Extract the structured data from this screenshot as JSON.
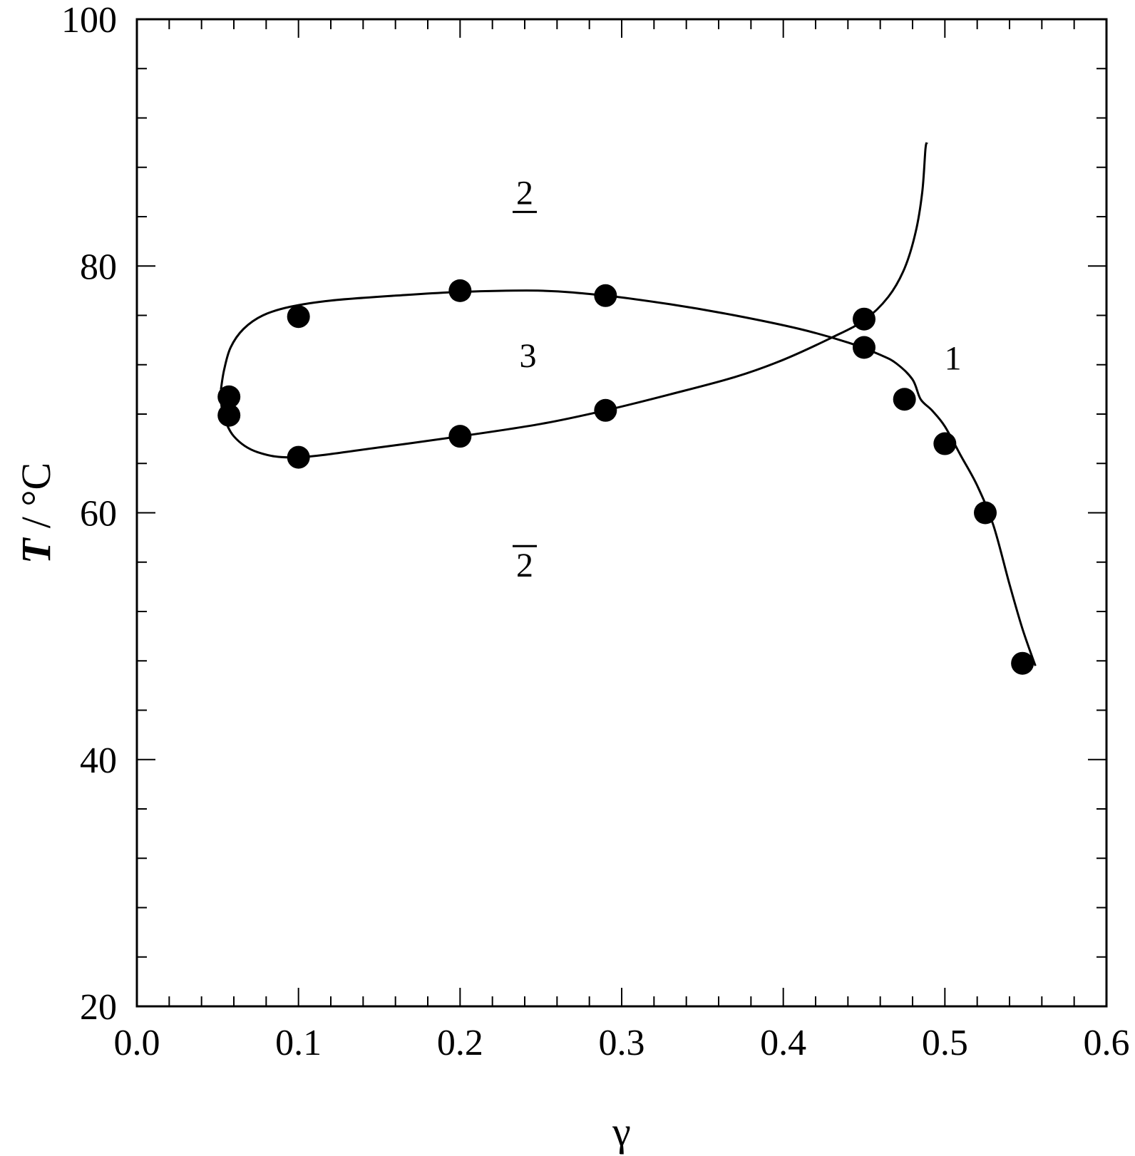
{
  "chart_data": {
    "type": "scatter",
    "xlabel": "γ",
    "ylabel_italic": "T",
    "ylabel_rest": " / °C",
    "xlim": [
      0.0,
      0.6
    ],
    "ylim": [
      20,
      100
    ],
    "x_ticks": [
      0.0,
      0.1,
      0.2,
      0.3,
      0.4,
      0.5,
      0.6
    ],
    "x_tick_labels": [
      "0.0",
      "0.1",
      "0.2",
      "0.3",
      "0.4",
      "0.5",
      "0.6"
    ],
    "y_ticks": [
      20,
      40,
      60,
      80,
      100
    ],
    "y_tick_labels": [
      "20",
      "40",
      "60",
      "80",
      "100"
    ],
    "x_minor_step": 0.02,
    "y_minor_step": 4,
    "grid": false,
    "points": [
      {
        "x": 0.1,
        "y": 75.9
      },
      {
        "x": 0.2,
        "y": 78.0
      },
      {
        "x": 0.29,
        "y": 77.6
      },
      {
        "x": 0.45,
        "y": 75.7
      },
      {
        "x": 0.45,
        "y": 73.4
      },
      {
        "x": 0.475,
        "y": 69.2
      },
      {
        "x": 0.5,
        "y": 65.6
      },
      {
        "x": 0.525,
        "y": 60.0
      },
      {
        "x": 0.548,
        "y": 47.8
      },
      {
        "x": 0.057,
        "y": 69.4
      },
      {
        "x": 0.057,
        "y": 67.9
      },
      {
        "x": 0.1,
        "y": 64.5
      },
      {
        "x": 0.2,
        "y": 66.2
      },
      {
        "x": 0.29,
        "y": 68.3
      }
    ],
    "curves": [
      {
        "points": [
          [
            0.052,
            70.0
          ],
          [
            0.054,
            71.6
          ],
          [
            0.058,
            73.4
          ],
          [
            0.066,
            74.9
          ],
          [
            0.078,
            76.0
          ],
          [
            0.095,
            76.7
          ],
          [
            0.12,
            77.2
          ],
          [
            0.16,
            77.6
          ],
          [
            0.2,
            77.9
          ],
          [
            0.25,
            78.0
          ],
          [
            0.29,
            77.6
          ],
          [
            0.33,
            76.9
          ],
          [
            0.37,
            76.0
          ],
          [
            0.41,
            74.9
          ],
          [
            0.44,
            73.8
          ],
          [
            0.46,
            72.8
          ],
          [
            0.47,
            72.1
          ],
          [
            0.48,
            70.8
          ],
          [
            0.485,
            69.2
          ],
          [
            0.492,
            68.3
          ],
          [
            0.5,
            67.0
          ],
          [
            0.51,
            64.6
          ],
          [
            0.52,
            62.2
          ],
          [
            0.53,
            59.0
          ],
          [
            0.54,
            54.2
          ],
          [
            0.548,
            50.6
          ],
          [
            0.556,
            47.6
          ]
        ]
      },
      {
        "points": [
          [
            0.052,
            70.0
          ],
          [
            0.053,
            68.2
          ],
          [
            0.06,
            66.2
          ],
          [
            0.075,
            64.9
          ],
          [
            0.1,
            64.5
          ],
          [
            0.15,
            65.3
          ],
          [
            0.2,
            66.2
          ],
          [
            0.25,
            67.2
          ],
          [
            0.29,
            68.3
          ],
          [
            0.33,
            69.6
          ],
          [
            0.37,
            71.0
          ],
          [
            0.4,
            72.4
          ],
          [
            0.43,
            74.2
          ],
          [
            0.45,
            75.6
          ],
          [
            0.465,
            77.5
          ],
          [
            0.475,
            79.8
          ],
          [
            0.482,
            82.8
          ],
          [
            0.486,
            86.0
          ],
          [
            0.488,
            89.5
          ],
          [
            0.489,
            90.0
          ]
        ]
      }
    ],
    "regions": [
      {
        "text": "2",
        "mark": "underline",
        "x": 0.24,
        "y": 86.0
      },
      {
        "text": "3",
        "mark": "none",
        "x": 0.242,
        "y": 72.8
      },
      {
        "text": "1",
        "mark": "none",
        "x": 0.505,
        "y": 72.6
      },
      {
        "text": "2",
        "mark": "overline",
        "x": 0.24,
        "y": 55.8
      }
    ]
  }
}
